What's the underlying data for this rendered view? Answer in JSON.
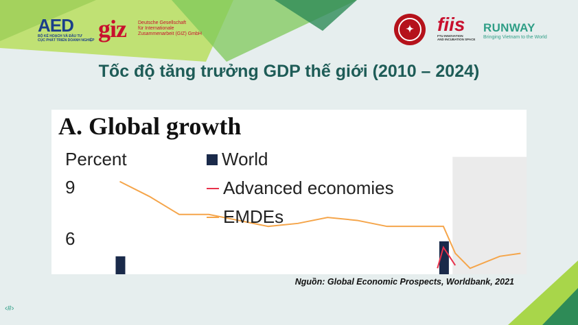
{
  "slide": {
    "title": "Tốc độ tăng trưởng GDP thế giới (2010 – 2024)",
    "source": "Nguồn: Global Economic Prospects, Worldbank, 2021",
    "slide_number": "‹#›"
  },
  "logos": {
    "aed": {
      "mark": "AED",
      "line1": "BỘ KẾ HOẠCH VÀ ĐẦU TƯ",
      "line2": "CỤC PHÁT TRIỂN DOANH NGHIỆP"
    },
    "giz": {
      "mark": "giz",
      "line1": "Deutsche Gesellschaft",
      "line2": "für Internationale",
      "line3": "Zusammenarbeit (GIZ) GmbH"
    },
    "fiis": {
      "mark": "fiis",
      "line1": "FTU INNOVATION",
      "line2": "AND INCUBATION SPACE"
    },
    "runway": {
      "title": "RUNWAY",
      "tagline": "Bringing Vietnam to the World"
    }
  },
  "colors": {
    "background": "#e6eeee",
    "title": "#1e5c57",
    "green_dark": "#2e8b57",
    "green_light": "#a8d64a",
    "teal": "#2f9e86",
    "red": "#c8102e"
  },
  "chart_data": {
    "type": "line",
    "title": "A. Global growth",
    "ylabel": "Percent",
    "yticks": [
      "9",
      "6"
    ],
    "ylim": [
      4.8,
      10.3
    ],
    "xlim": [
      0,
      16
    ],
    "legend": {
      "placement": "top"
    },
    "series": [
      {
        "name": "World",
        "style": "bar",
        "color": "#1a2a4a",
        "points": [
          [
            2.3,
            5.4
          ],
          [
            13.2,
            5.9
          ]
        ]
      },
      {
        "name": "Advanced economies",
        "style": "line",
        "color": "#e8304a",
        "points": [
          [
            13.0,
            5.0
          ],
          [
            13.2,
            5.7
          ],
          [
            13.6,
            5.1
          ]
        ]
      },
      {
        "name": "EMDEs",
        "style": "line",
        "color": "#f5a54a",
        "points": [
          [
            2.3,
            7.9
          ],
          [
            3.3,
            7.4
          ],
          [
            4.3,
            6.8
          ],
          [
            5.3,
            6.8
          ],
          [
            6.3,
            6.6
          ],
          [
            7.3,
            6.4
          ],
          [
            8.3,
            6.5
          ],
          [
            9.3,
            6.7
          ],
          [
            10.3,
            6.6
          ],
          [
            11.3,
            6.4
          ],
          [
            12.3,
            6.4
          ],
          [
            13.2,
            6.4
          ],
          [
            13.6,
            5.5
          ],
          [
            14.1,
            5.0
          ],
          [
            15.1,
            5.4
          ],
          [
            15.8,
            5.5
          ]
        ]
      }
    ],
    "shaded_region": {
      "x": [
        13.0,
        16.0
      ],
      "color": "#ebebeb"
    }
  }
}
